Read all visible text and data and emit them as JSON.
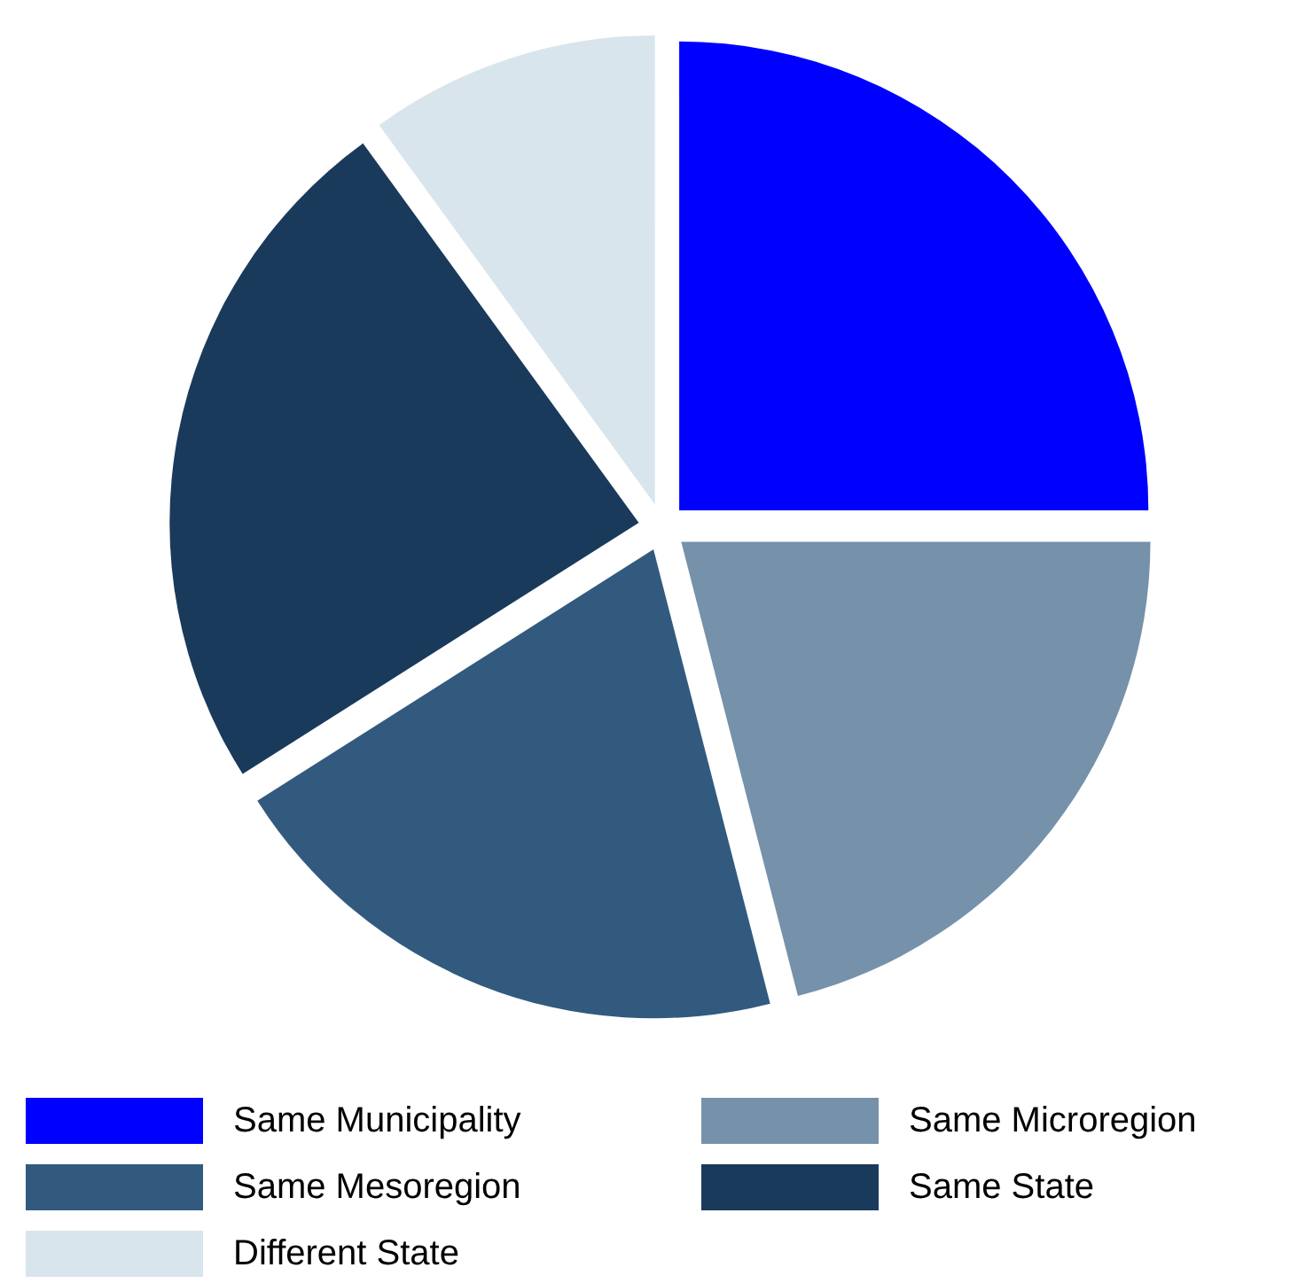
{
  "chart_data": {
    "type": "pie",
    "categories": [
      "Same Municipality",
      "Same Microregion",
      "Same Mesoregion",
      "Same State",
      "Different State"
    ],
    "values": [
      25,
      21,
      20,
      24,
      10
    ],
    "colors": [
      "#0000ff",
      "#7691aa",
      "#325a7e",
      "#1a3a5c",
      "#d9e5ec"
    ],
    "legend": "bottom"
  }
}
